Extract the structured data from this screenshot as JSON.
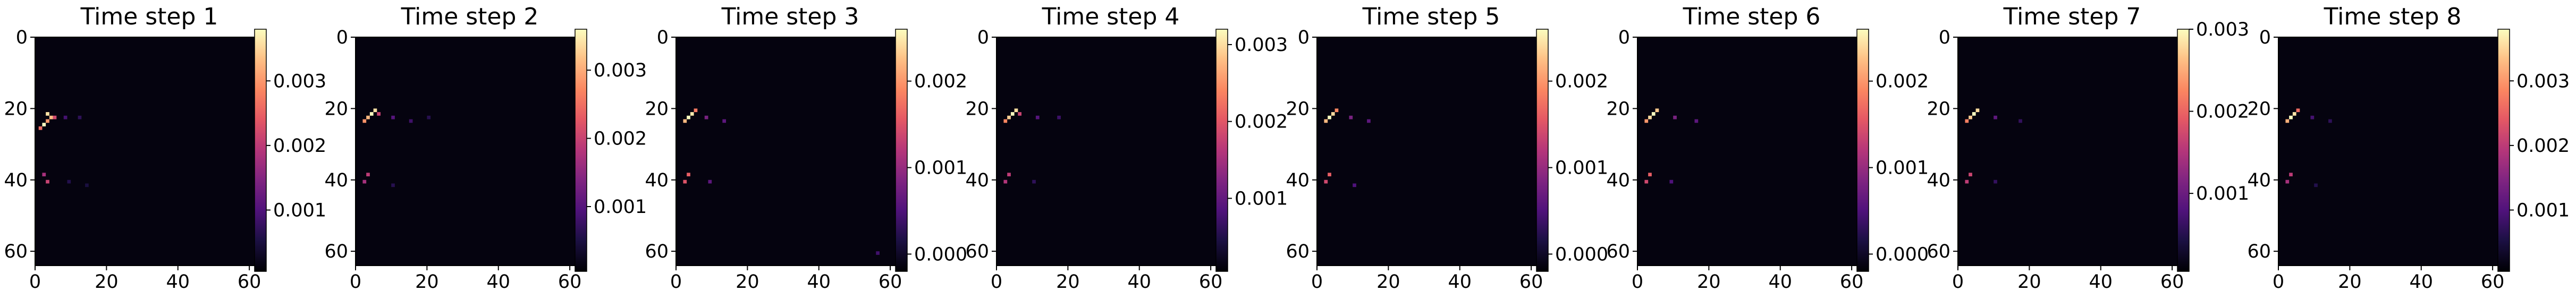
{
  "chart_data": [
    {
      "type": "heatmap",
      "title": "Time step 1",
      "xlabel": "",
      "ylabel": "",
      "xlim": [
        0,
        64
      ],
      "ylim": [
        64,
        0
      ],
      "x_ticks": [
        "0",
        "20",
        "40",
        "60"
      ],
      "y_ticks": [
        "0",
        "20",
        "40",
        "60"
      ],
      "colormap": "magma",
      "colorbar": {
        "min": 5e-05,
        "max": 0.0038,
        "ticks": [
          0.001,
          0.002,
          0.003
        ],
        "tick_labels": [
          "0.001",
          "0.002",
          "0.003"
        ]
      },
      "hotspots": [
        {
          "x": 3,
          "y": 21,
          "value": 0.0036
        },
        {
          "x": 4,
          "y": 22,
          "value": 0.0033
        },
        {
          "x": 3,
          "y": 23,
          "value": 0.003
        },
        {
          "x": 2,
          "y": 24,
          "value": 0.0038
        },
        {
          "x": 1,
          "y": 25,
          "value": 0.0026
        },
        {
          "x": 5,
          "y": 22,
          "value": 0.0022
        },
        {
          "x": 2,
          "y": 38,
          "value": 0.0018
        },
        {
          "x": 3,
          "y": 40,
          "value": 0.0021
        },
        {
          "x": 8,
          "y": 22,
          "value": 0.0009
        },
        {
          "x": 12,
          "y": 22,
          "value": 0.0007
        },
        {
          "x": 9,
          "y": 40,
          "value": 0.0006
        },
        {
          "x": 14,
          "y": 41,
          "value": 0.0005
        }
      ]
    },
    {
      "type": "heatmap",
      "title": "Time step 2",
      "xlabel": "",
      "ylabel": "",
      "xlim": [
        0,
        64
      ],
      "ylim": [
        64,
        0
      ],
      "x_ticks": [
        "0",
        "20",
        "40",
        "60"
      ],
      "y_ticks": [
        "0",
        "20",
        "40",
        "60"
      ],
      "colormap": "magma",
      "colorbar": {
        "min": 5e-05,
        "max": 0.0036,
        "ticks": [
          0.001,
          0.002,
          0.003
        ],
        "tick_labels": [
          "0.001",
          "0.002",
          "0.003"
        ]
      },
      "hotspots": [
        {
          "x": 5,
          "y": 20,
          "value": 0.0034
        },
        {
          "x": 4,
          "y": 21,
          "value": 0.0036
        },
        {
          "x": 3,
          "y": 22,
          "value": 0.0031
        },
        {
          "x": 2,
          "y": 23,
          "value": 0.0028
        },
        {
          "x": 6,
          "y": 21,
          "value": 0.002
        },
        {
          "x": 3,
          "y": 38,
          "value": 0.0019
        },
        {
          "x": 2,
          "y": 40,
          "value": 0.0017
        },
        {
          "x": 10,
          "y": 22,
          "value": 0.001
        },
        {
          "x": 15,
          "y": 23,
          "value": 0.0008
        },
        {
          "x": 20,
          "y": 22,
          "value": 0.0006
        },
        {
          "x": 10,
          "y": 41,
          "value": 0.0006
        }
      ]
    },
    {
      "type": "heatmap",
      "title": "Time step 3",
      "xlabel": "",
      "ylabel": "",
      "xlim": [
        0,
        64
      ],
      "ylim": [
        64,
        0
      ],
      "x_ticks": [
        "0",
        "20",
        "40",
        "60"
      ],
      "y_ticks": [
        "0",
        "20",
        "40",
        "60"
      ],
      "colormap": "magma",
      "colorbar": {
        "min": -0.0002,
        "max": 0.0026,
        "ticks": [
          0.0,
          0.001,
          0.002
        ],
        "tick_labels": [
          "0.000",
          "0.001",
          "0.002"
        ]
      },
      "hotspots": [
        {
          "x": 4,
          "y": 21,
          "value": 0.0025
        },
        {
          "x": 3,
          "y": 22,
          "value": 0.0026
        },
        {
          "x": 2,
          "y": 23,
          "value": 0.0022
        },
        {
          "x": 5,
          "y": 20,
          "value": 0.0018
        },
        {
          "x": 3,
          "y": 38,
          "value": 0.0016
        },
        {
          "x": 2,
          "y": 40,
          "value": 0.0015
        },
        {
          "x": 8,
          "y": 22,
          "value": 0.0008
        },
        {
          "x": 13,
          "y": 23,
          "value": 0.0006
        },
        {
          "x": 9,
          "y": 40,
          "value": 0.0006
        },
        {
          "x": 56,
          "y": 60,
          "value": 0.0004
        }
      ]
    },
    {
      "type": "heatmap",
      "title": "Time step 4",
      "xlabel": "",
      "ylabel": "",
      "xlim": [
        0,
        64
      ],
      "ylim": [
        64,
        0
      ],
      "x_ticks": [
        "0",
        "20",
        "40",
        "60"
      ],
      "y_ticks": [
        "0",
        "20",
        "40",
        "60"
      ],
      "colormap": "magma",
      "colorbar": {
        "min": 5e-05,
        "max": 0.0032,
        "ticks": [
          0.001,
          0.002,
          0.003
        ],
        "tick_labels": [
          "0.001",
          "0.002",
          "0.003"
        ]
      },
      "hotspots": [
        {
          "x": 5,
          "y": 20,
          "value": 0.003
        },
        {
          "x": 4,
          "y": 21,
          "value": 0.0032
        },
        {
          "x": 3,
          "y": 22,
          "value": 0.0029
        },
        {
          "x": 2,
          "y": 23,
          "value": 0.0024
        },
        {
          "x": 6,
          "y": 21,
          "value": 0.0018
        },
        {
          "x": 3,
          "y": 38,
          "value": 0.0017
        },
        {
          "x": 2,
          "y": 40,
          "value": 0.0016
        },
        {
          "x": 11,
          "y": 22,
          "value": 0.0009
        },
        {
          "x": 17,
          "y": 22,
          "value": 0.0007
        },
        {
          "x": 10,
          "y": 40,
          "value": 0.0006
        }
      ]
    },
    {
      "type": "heatmap",
      "title": "Time step 5",
      "xlabel": "",
      "ylabel": "",
      "xlim": [
        0,
        64
      ],
      "ylim": [
        64,
        0
      ],
      "x_ticks": [
        "0",
        "20",
        "40",
        "60"
      ],
      "y_ticks": [
        "0",
        "20",
        "40",
        "60"
      ],
      "colormap": "magma",
      "colorbar": {
        "min": -0.0002,
        "max": 0.0026,
        "ticks": [
          0.0,
          0.001,
          0.002
        ],
        "tick_labels": [
          "0.000",
          "0.001",
          "0.002"
        ]
      },
      "hotspots": [
        {
          "x": 4,
          "y": 21,
          "value": 0.0024
        },
        {
          "x": 3,
          "y": 22,
          "value": 0.0026
        },
        {
          "x": 2,
          "y": 23,
          "value": 0.0022
        },
        {
          "x": 5,
          "y": 20,
          "value": 0.0019
        },
        {
          "x": 3,
          "y": 38,
          "value": 0.0016
        },
        {
          "x": 2,
          "y": 40,
          "value": 0.0014
        },
        {
          "x": 9,
          "y": 22,
          "value": 0.0008
        },
        {
          "x": 14,
          "y": 23,
          "value": 0.0006
        },
        {
          "x": 10,
          "y": 41,
          "value": 0.0005
        }
      ]
    },
    {
      "type": "heatmap",
      "title": "Time step 6",
      "xlabel": "",
      "ylabel": "",
      "xlim": [
        0,
        64
      ],
      "ylim": [
        64,
        0
      ],
      "x_ticks": [
        "0",
        "20",
        "40",
        "60"
      ],
      "y_ticks": [
        "0",
        "20",
        "40",
        "60"
      ],
      "colormap": "magma",
      "colorbar": {
        "min": -0.0002,
        "max": 0.0026,
        "ticks": [
          0.0,
          0.001,
          0.002
        ],
        "tick_labels": [
          "0.000",
          "0.001",
          "0.002"
        ]
      },
      "hotspots": [
        {
          "x": 5,
          "y": 20,
          "value": 0.0023
        },
        {
          "x": 4,
          "y": 21,
          "value": 0.0026
        },
        {
          "x": 3,
          "y": 22,
          "value": 0.0024
        },
        {
          "x": 2,
          "y": 23,
          "value": 0.002
        },
        {
          "x": 3,
          "y": 38,
          "value": 0.0016
        },
        {
          "x": 2,
          "y": 40,
          "value": 0.0014
        },
        {
          "x": 10,
          "y": 22,
          "value": 0.0008
        },
        {
          "x": 16,
          "y": 23,
          "value": 0.0006
        },
        {
          "x": 9,
          "y": 40,
          "value": 0.0005
        }
      ]
    },
    {
      "type": "heatmap",
      "title": "Time step 7",
      "xlabel": "",
      "ylabel": "",
      "xlim": [
        0,
        64
      ],
      "ylim": [
        64,
        0
      ],
      "x_ticks": [
        "0",
        "20",
        "40",
        "60"
      ],
      "y_ticks": [
        "0",
        "20",
        "40",
        "60"
      ],
      "colormap": "magma",
      "colorbar": {
        "min": 5e-05,
        "max": 0.003,
        "ticks": [
          0.001,
          0.002,
          0.003
        ],
        "tick_labels": [
          "0.001",
          "0.002",
          "0.003"
        ]
      },
      "hotspots": [
        {
          "x": 5,
          "y": 20,
          "value": 0.0028
        },
        {
          "x": 4,
          "y": 21,
          "value": 0.003
        },
        {
          "x": 3,
          "y": 22,
          "value": 0.0027
        },
        {
          "x": 2,
          "y": 23,
          "value": 0.0022
        },
        {
          "x": 3,
          "y": 38,
          "value": 0.0017
        },
        {
          "x": 2,
          "y": 40,
          "value": 0.0016
        },
        {
          "x": 10,
          "y": 22,
          "value": 0.0009
        },
        {
          "x": 17,
          "y": 23,
          "value": 0.0006
        },
        {
          "x": 10,
          "y": 40,
          "value": 0.0006
        }
      ]
    },
    {
      "type": "heatmap",
      "title": "Time step 8",
      "xlabel": "",
      "ylabel": "",
      "xlim": [
        0,
        64
      ],
      "ylim": [
        64,
        0
      ],
      "x_ticks": [
        "0",
        "20",
        "40",
        "60"
      ],
      "y_ticks": [
        "0",
        "20",
        "40",
        "60"
      ],
      "colormap": "magma",
      "colorbar": {
        "min": 5e-05,
        "max": 0.0038,
        "ticks": [
          0.001,
          0.002,
          0.003
        ],
        "tick_labels": [
          "0.001",
          "0.002",
          "0.003"
        ]
      },
      "hotspots": [
        {
          "x": 4,
          "y": 21,
          "value": 0.0036
        },
        {
          "x": 3,
          "y": 22,
          "value": 0.0038
        },
        {
          "x": 2,
          "y": 23,
          "value": 0.0032
        },
        {
          "x": 5,
          "y": 20,
          "value": 0.0026
        },
        {
          "x": 3,
          "y": 38,
          "value": 0.002
        },
        {
          "x": 2,
          "y": 40,
          "value": 0.0018
        },
        {
          "x": 9,
          "y": 22,
          "value": 0.0009
        },
        {
          "x": 14,
          "y": 23,
          "value": 0.0007
        },
        {
          "x": 10,
          "y": 41,
          "value": 0.0006
        }
      ]
    }
  ]
}
